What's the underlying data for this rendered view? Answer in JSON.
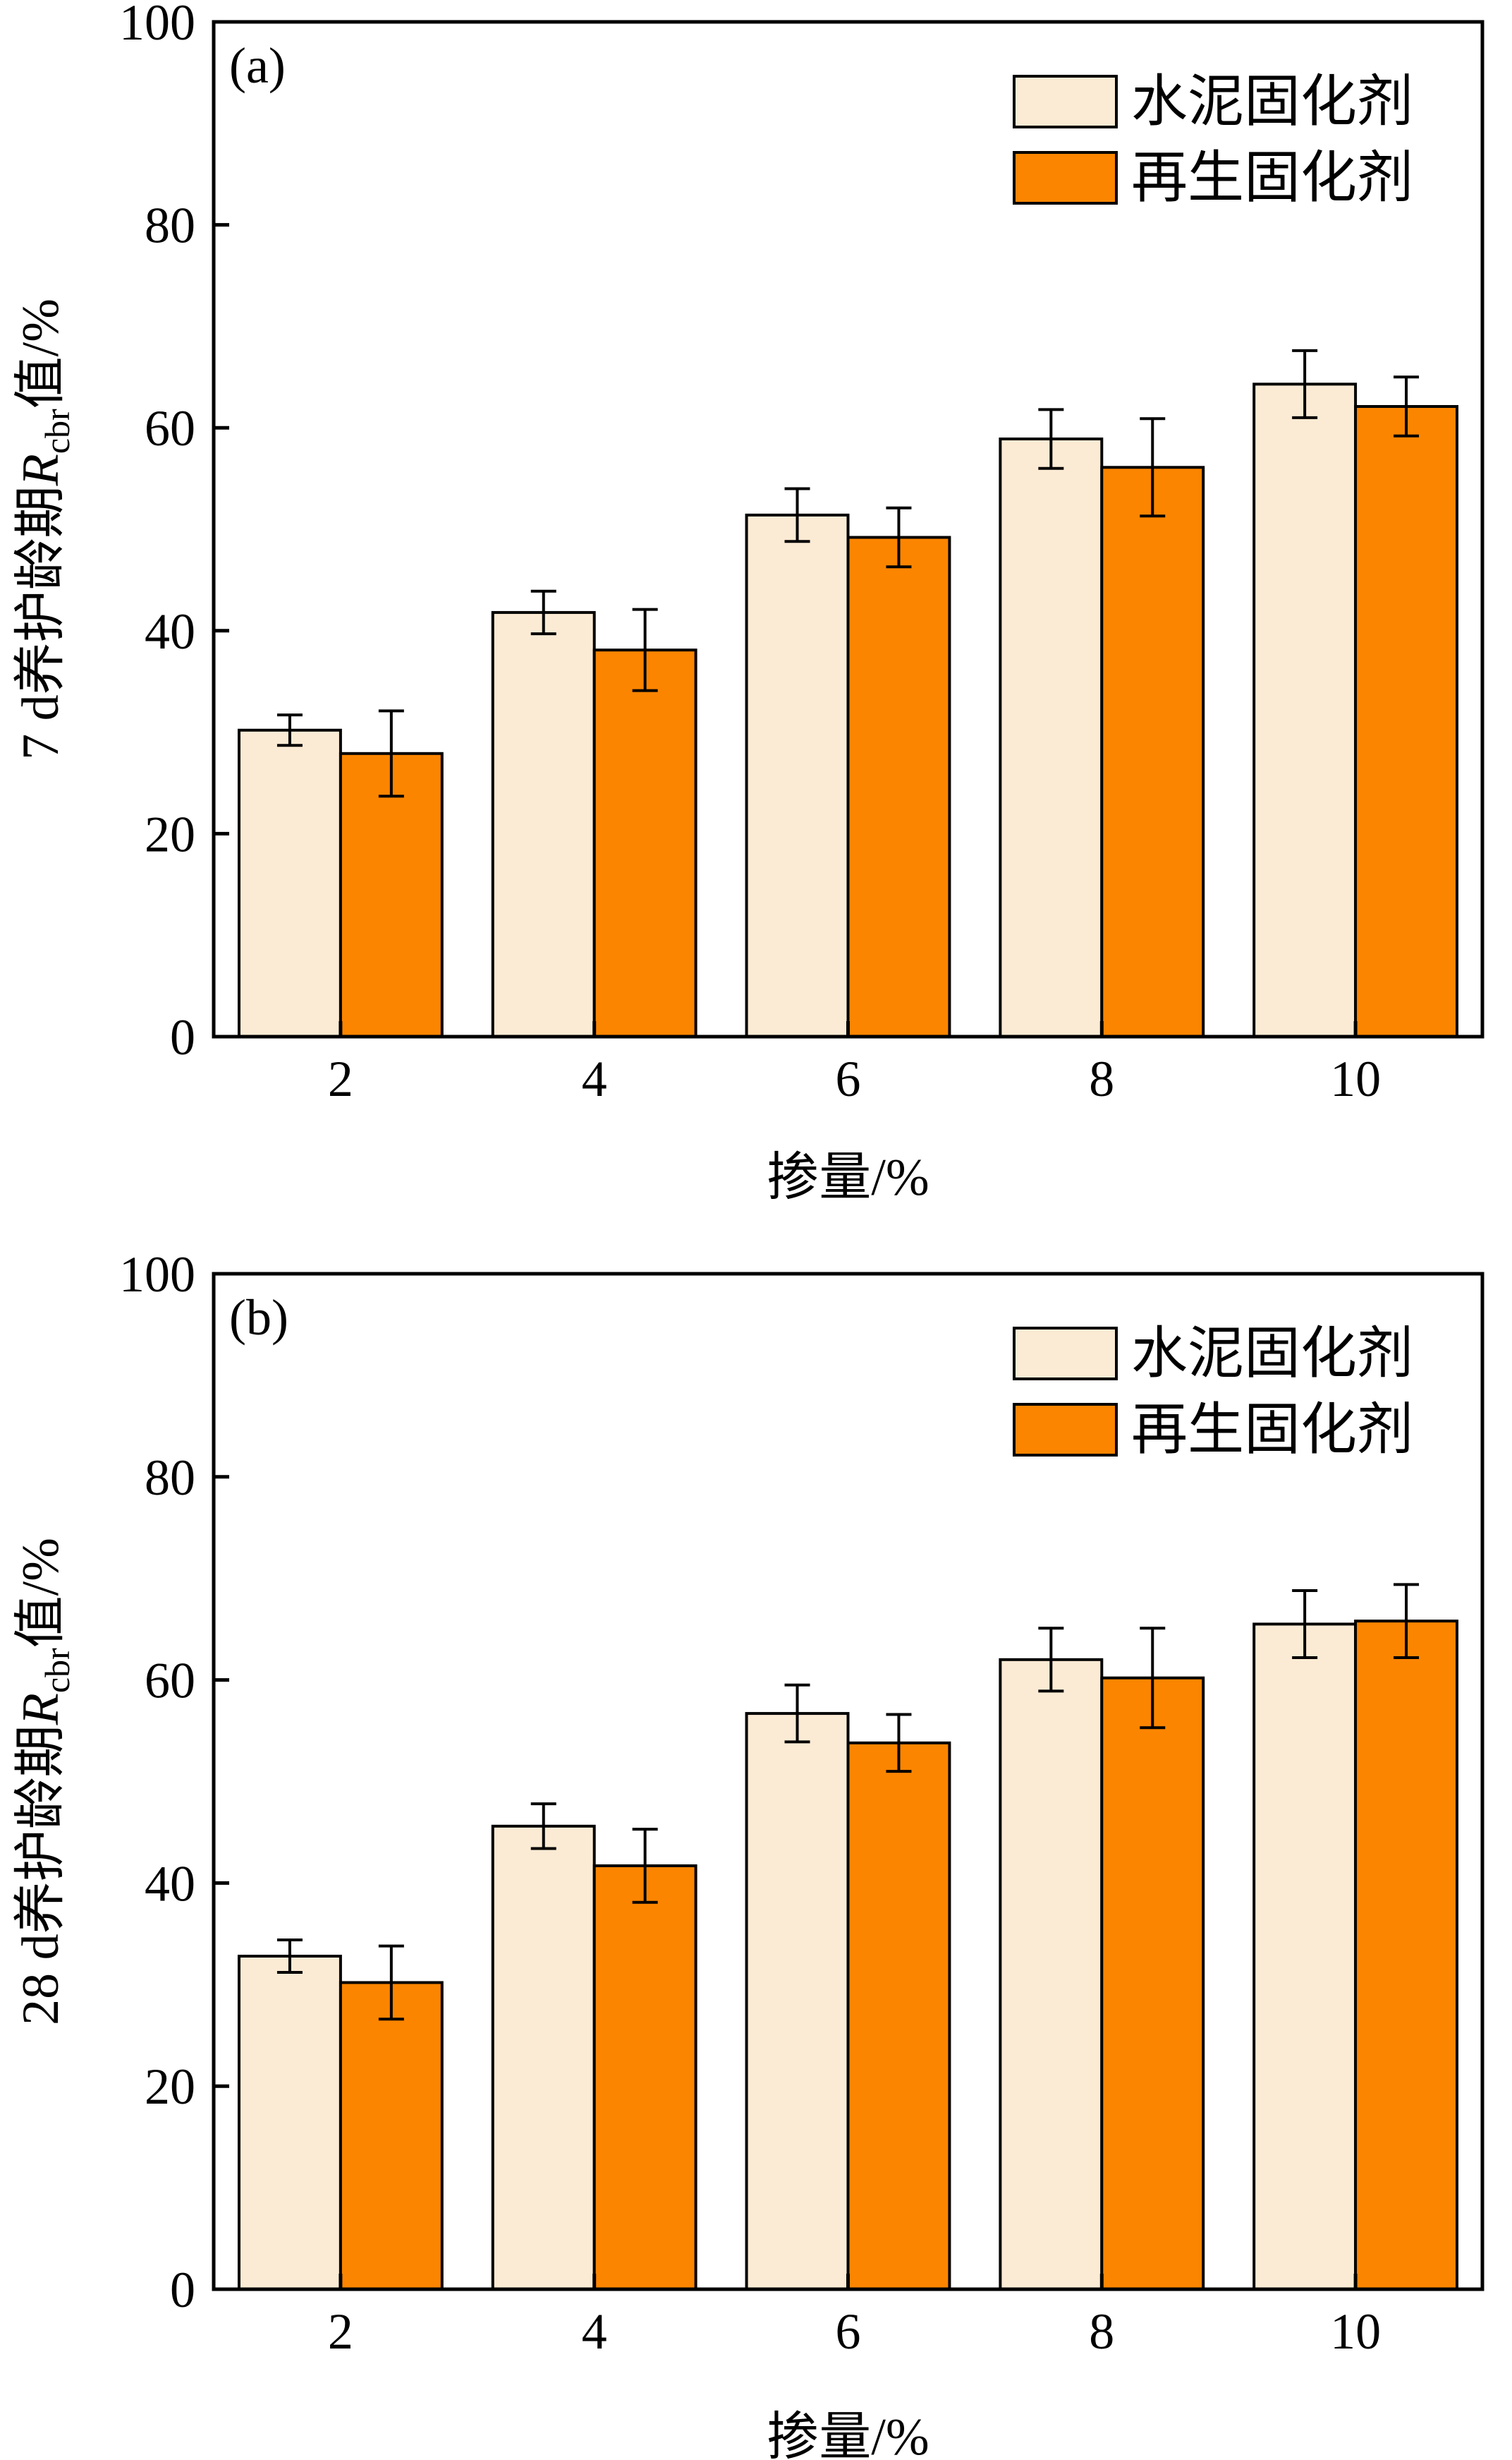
{
  "colors": {
    "series_cement": "#fcebd4",
    "series_recycled": "#fc8500",
    "axis": "#000000",
    "background": "#ffffff"
  },
  "chart_data": [
    {
      "type": "bar",
      "panel_label": "(a)",
      "title": "",
      "xlabel": "掺量/%",
      "ylabel_main": "7 d养护龄期",
      "ylabel_symbol": "R",
      "ylabel_subscript": "cbr",
      "ylabel_tail": "值/%",
      "categories": [
        "2",
        "4",
        "6",
        "8",
        "10"
      ],
      "ylim": [
        0,
        100
      ],
      "yticks": [
        "0",
        "20",
        "40",
        "60",
        "80",
        "100"
      ],
      "legend_position": "top-right",
      "series": [
        {
          "name": "水泥固化剂",
          "color_key": "series_cement",
          "values": [
            30.2,
            41.8,
            51.4,
            58.9,
            64.3
          ],
          "errors": [
            1.5,
            2.1,
            2.6,
            2.9,
            3.3
          ]
        },
        {
          "name": "再生固化剂",
          "color_key": "series_recycled",
          "values": [
            27.9,
            38.1,
            49.2,
            56.1,
            62.1
          ],
          "errors": [
            4.2,
            4.0,
            2.9,
            4.8,
            2.9
          ]
        }
      ]
    },
    {
      "type": "bar",
      "panel_label": "(b)",
      "title": "",
      "xlabel": "掺量/%",
      "ylabel_main": "28 d养护龄期",
      "ylabel_symbol": "R",
      "ylabel_subscript": "cbr",
      "ylabel_tail": "值/%",
      "categories": [
        "2",
        "4",
        "6",
        "8",
        "10"
      ],
      "ylim": [
        0,
        100
      ],
      "yticks": [
        "0",
        "20",
        "40",
        "60",
        "80",
        "100"
      ],
      "legend_position": "top-right",
      "series": [
        {
          "name": "水泥固化剂",
          "color_key": "series_cement",
          "values": [
            32.8,
            45.6,
            56.7,
            62.0,
            65.5
          ],
          "errors": [
            1.6,
            2.2,
            2.8,
            3.1,
            3.3
          ]
        },
        {
          "name": "再生固化剂",
          "color_key": "series_recycled",
          "values": [
            30.2,
            41.7,
            53.8,
            60.2,
            65.8
          ],
          "errors": [
            3.6,
            3.6,
            2.8,
            4.9,
            3.6
          ]
        }
      ]
    }
  ]
}
